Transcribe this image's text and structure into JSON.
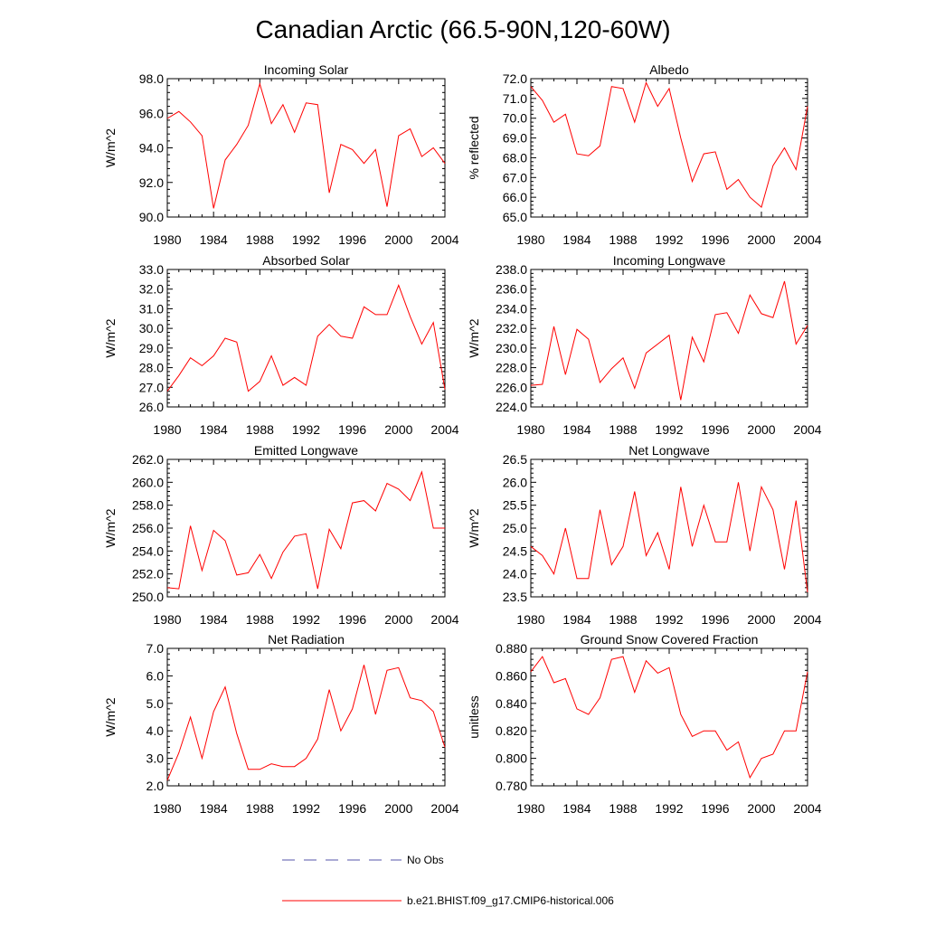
{
  "figure_title": "Canadian Arctic (66.5-90N,120-60W)",
  "legend": {
    "obs_label": "No Obs",
    "obs_color": "#5555aa",
    "model_label": "b.e21.BHIST.f09_g17.CMIP6-historical.006",
    "model_color": "#ff0000"
  },
  "chart_data": [
    {
      "type": "line",
      "title": "Incoming Solar",
      "xlabel": "",
      "ylabel": "W/m^2",
      "x": [
        1980,
        1981,
        1982,
        1983,
        1984,
        1985,
        1986,
        1987,
        1988,
        1989,
        1990,
        1991,
        1992,
        1993,
        1994,
        1995,
        1996,
        1997,
        1998,
        1999,
        2000,
        2001,
        2002,
        2003,
        2004
      ],
      "xlim": [
        1980,
        2004
      ],
      "xticks": [
        "1980",
        "1984",
        "1988",
        "1992",
        "1996",
        "2000",
        "2004"
      ],
      "ylim": [
        90,
        98
      ],
      "yticks": [
        "90.0",
        "92.0",
        "94.0",
        "96.0",
        "98.0"
      ],
      "series": [
        {
          "name": "b.e21.BHIST.f09_g17.CMIP6-historical.006",
          "color": "#ff0000",
          "values": [
            95.7,
            96.1,
            95.5,
            94.7,
            90.5,
            93.3,
            94.2,
            95.3,
            97.7,
            95.4,
            96.5,
            94.9,
            96.6,
            96.5,
            91.4,
            94.2,
            93.9,
            93.1,
            93.9,
            90.6,
            94.7,
            95.1,
            93.5,
            94.0,
            93.1
          ]
        }
      ]
    },
    {
      "type": "line",
      "title": "Albedo",
      "xlabel": "",
      "ylabel": "% reflected",
      "x": [
        1980,
        1981,
        1982,
        1983,
        1984,
        1985,
        1986,
        1987,
        1988,
        1989,
        1990,
        1991,
        1992,
        1993,
        1994,
        1995,
        1996,
        1997,
        1998,
        1999,
        2000,
        2001,
        2002,
        2003,
        2004
      ],
      "xlim": [
        1980,
        2004
      ],
      "xticks": [
        "1980",
        "1984",
        "1988",
        "1992",
        "1996",
        "2000",
        "2004"
      ],
      "ylim": [
        65,
        72
      ],
      "yticks": [
        "65.0",
        "66.0",
        "67.0",
        "68.0",
        "69.0",
        "70.0",
        "71.0",
        "72.0"
      ],
      "series": [
        {
          "name": "b.e21.BHIST.f09_g17.CMIP6-historical.006",
          "color": "#ff0000",
          "values": [
            71.6,
            70.9,
            69.8,
            70.2,
            68.2,
            68.1,
            68.6,
            71.6,
            71.5,
            69.8,
            71.8,
            70.6,
            71.5,
            69.0,
            66.8,
            68.2,
            68.3,
            66.4,
            66.9,
            66.0,
            65.5,
            67.6,
            68.5,
            67.4,
            70.6
          ]
        }
      ]
    },
    {
      "type": "line",
      "title": "Absorbed Solar",
      "xlabel": "",
      "ylabel": "W/m^2",
      "x": [
        1980,
        1981,
        1982,
        1983,
        1984,
        1985,
        1986,
        1987,
        1988,
        1989,
        1990,
        1991,
        1992,
        1993,
        1994,
        1995,
        1996,
        1997,
        1998,
        1999,
        2000,
        2001,
        2002,
        2003,
        2004
      ],
      "xlim": [
        1980,
        2004
      ],
      "xticks": [
        "1980",
        "1984",
        "1988",
        "1992",
        "1996",
        "2000",
        "2004"
      ],
      "ylim": [
        26,
        33
      ],
      "yticks": [
        "26.0",
        "27.0",
        "28.0",
        "29.0",
        "30.0",
        "31.0",
        "32.0",
        "33.0"
      ],
      "series": [
        {
          "name": "b.e21.BHIST.f09_g17.CMIP6-historical.006",
          "color": "#ff0000",
          "values": [
            26.8,
            27.6,
            28.5,
            28.1,
            28.6,
            29.5,
            29.3,
            26.8,
            27.3,
            28.6,
            27.1,
            27.5,
            27.1,
            29.6,
            30.2,
            29.6,
            29.5,
            31.1,
            30.7,
            30.7,
            32.2,
            30.6,
            29.2,
            30.3,
            26.9
          ]
        }
      ]
    },
    {
      "type": "line",
      "title": "Incoming Longwave",
      "xlabel": "",
      "ylabel": "W/m^2",
      "x": [
        1980,
        1981,
        1982,
        1983,
        1984,
        1985,
        1986,
        1987,
        1988,
        1989,
        1990,
        1991,
        1992,
        1993,
        1994,
        1995,
        1996,
        1997,
        1998,
        1999,
        2000,
        2001,
        2002,
        2003,
        2004
      ],
      "xlim": [
        1980,
        2004
      ],
      "xticks": [
        "1980",
        "1984",
        "1988",
        "1992",
        "1996",
        "2000",
        "2004"
      ],
      "ylim": [
        224,
        238
      ],
      "yticks": [
        "224.0",
        "226.0",
        "228.0",
        "230.0",
        "232.0",
        "234.0",
        "236.0",
        "238.0"
      ],
      "series": [
        {
          "name": "b.e21.BHIST.f09_g17.CMIP6-historical.006",
          "color": "#ff0000",
          "values": [
            226.2,
            226.3,
            232.2,
            227.3,
            231.9,
            230.9,
            226.5,
            227.9,
            229.0,
            225.9,
            229.5,
            230.4,
            231.3,
            224.7,
            231.1,
            228.6,
            233.4,
            233.6,
            231.5,
            235.4,
            233.5,
            233.1,
            236.8,
            230.4,
            232.3
          ]
        }
      ]
    },
    {
      "type": "line",
      "title": "Emitted Longwave",
      "xlabel": "",
      "ylabel": "W/m^2",
      "x": [
        1980,
        1981,
        1982,
        1983,
        1984,
        1985,
        1986,
        1987,
        1988,
        1989,
        1990,
        1991,
        1992,
        1993,
        1994,
        1995,
        1996,
        1997,
        1998,
        1999,
        2000,
        2001,
        2002,
        2003,
        2004
      ],
      "xlim": [
        1980,
        2004
      ],
      "xticks": [
        "1980",
        "1984",
        "1988",
        "1992",
        "1996",
        "2000",
        "2004"
      ],
      "ylim": [
        250,
        262
      ],
      "yticks": [
        "250.0",
        "252.0",
        "254.0",
        "256.0",
        "258.0",
        "260.0",
        "262.0"
      ],
      "series": [
        {
          "name": "b.e21.BHIST.f09_g17.CMIP6-historical.006",
          "color": "#ff0000",
          "values": [
            250.8,
            250.7,
            256.2,
            252.3,
            255.8,
            254.9,
            251.9,
            252.1,
            253.7,
            251.6,
            253.9,
            255.3,
            255.5,
            250.7,
            255.9,
            254.2,
            258.2,
            258.4,
            257.5,
            259.9,
            259.4,
            258.4,
            260.9,
            256.0,
            256.0
          ]
        }
      ]
    },
    {
      "type": "line",
      "title": "Net Longwave",
      "xlabel": "",
      "ylabel": "W/m^2",
      "x": [
        1980,
        1981,
        1982,
        1983,
        1984,
        1985,
        1986,
        1987,
        1988,
        1989,
        1990,
        1991,
        1992,
        1993,
        1994,
        1995,
        1996,
        1997,
        1998,
        1999,
        2000,
        2001,
        2002,
        2003,
        2004
      ],
      "xlim": [
        1980,
        2004
      ],
      "xticks": [
        "1980",
        "1984",
        "1988",
        "1992",
        "1996",
        "2000",
        "2004"
      ],
      "ylim": [
        23.5,
        26.5
      ],
      "yticks": [
        "23.5",
        "24.0",
        "24.5",
        "25.0",
        "25.5",
        "26.0",
        "26.5"
      ],
      "series": [
        {
          "name": "b.e21.BHIST.f09_g17.CMIP6-historical.006",
          "color": "#ff0000",
          "values": [
            24.6,
            24.4,
            24.0,
            25.0,
            23.9,
            23.9,
            25.4,
            24.2,
            24.6,
            25.8,
            24.4,
            24.9,
            24.1,
            25.9,
            24.6,
            25.5,
            24.7,
            24.7,
            26.0,
            24.5,
            25.9,
            25.4,
            24.1,
            25.6,
            23.6
          ]
        }
      ]
    },
    {
      "type": "line",
      "title": "Net Radiation",
      "xlabel": "",
      "ylabel": "W/m^2",
      "x": [
        1980,
        1981,
        1982,
        1983,
        1984,
        1985,
        1986,
        1987,
        1988,
        1989,
        1990,
        1991,
        1992,
        1993,
        1994,
        1995,
        1996,
        1997,
        1998,
        1999,
        2000,
        2001,
        2002,
        2003,
        2004
      ],
      "xlim": [
        1980,
        2004
      ],
      "xticks": [
        "1980",
        "1984",
        "1988",
        "1992",
        "1996",
        "2000",
        "2004"
      ],
      "ylim": [
        2,
        7
      ],
      "yticks": [
        "2.0",
        "3.0",
        "4.0",
        "5.0",
        "6.0",
        "7.0"
      ],
      "series": [
        {
          "name": "b.e21.BHIST.f09_g17.CMIP6-historical.006",
          "color": "#ff0000",
          "values": [
            2.2,
            3.2,
            4.5,
            3.0,
            4.7,
            5.6,
            3.9,
            2.6,
            2.6,
            2.8,
            2.7,
            2.7,
            3.0,
            3.7,
            5.5,
            4.0,
            4.8,
            6.4,
            4.6,
            6.2,
            6.3,
            5.2,
            5.1,
            4.7,
            3.4
          ]
        }
      ]
    },
    {
      "type": "line",
      "title": "Ground Snow Covered Fraction",
      "xlabel": "",
      "ylabel": "unitless",
      "x": [
        1980,
        1981,
        1982,
        1983,
        1984,
        1985,
        1986,
        1987,
        1988,
        1989,
        1990,
        1991,
        1992,
        1993,
        1994,
        1995,
        1996,
        1997,
        1998,
        1999,
        2000,
        2001,
        2002,
        2003,
        2004
      ],
      "xlim": [
        1980,
        2004
      ],
      "xticks": [
        "1980",
        "1984",
        "1988",
        "1992",
        "1996",
        "2000",
        "2004"
      ],
      "ylim": [
        0.78,
        0.88
      ],
      "yticks": [
        "0.780",
        "0.800",
        "0.820",
        "0.840",
        "0.860",
        "0.880"
      ],
      "series": [
        {
          "name": "b.e21.BHIST.f09_g17.CMIP6-historical.006",
          "color": "#ff0000",
          "values": [
            0.863,
            0.874,
            0.855,
            0.858,
            0.836,
            0.832,
            0.844,
            0.872,
            0.874,
            0.848,
            0.871,
            0.862,
            0.866,
            0.832,
            0.816,
            0.82,
            0.82,
            0.806,
            0.812,
            0.786,
            0.8,
            0.803,
            0.82,
            0.82,
            0.863
          ]
        }
      ]
    }
  ]
}
